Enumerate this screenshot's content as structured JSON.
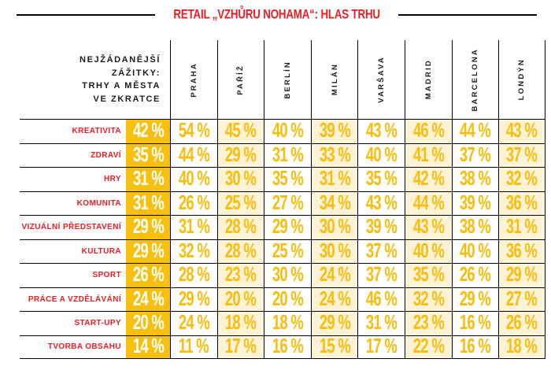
{
  "title": "RETAIL „VZHŮRU NOHAMA“: HLAS TRHU",
  "header": {
    "corner_lines": [
      "NEJŽÁDANĚJŠÍ",
      "ZÁŽITKY:",
      "TRHY A MĚSTA",
      "VE ZKRATCE"
    ]
  },
  "unit_suffix": " %",
  "colors": {
    "red": "#ED1C24",
    "gold_bg": "#F7C00E",
    "gold_text": "#FABD0C",
    "cream_bg": "#FCF3D7",
    "dark_text": "#1D1D1B",
    "line": "#000000"
  },
  "chart_data": {
    "type": "table",
    "title": "RETAIL „VZHŮRU NOHAMA“: HLAS TRHU",
    "corner_label": "NEJŽÁDANĚJŠÍ ZÁŽITKY: TRHY A MĚSTA VE ZKRATCE",
    "unit": "%",
    "columns": [
      "PRAHA",
      "PAŘÍŽ",
      "BERLÍN",
      "MILÁN",
      "VARŠAVA",
      "MADRID",
      "BARCELONA",
      "LONDÝN"
    ],
    "rows": [
      {
        "label": "KREATIVITA",
        "overall": 42,
        "values": [
          54,
          45,
          40,
          39,
          43,
          46,
          44,
          43
        ]
      },
      {
        "label": "ZDRAVÍ",
        "overall": 35,
        "values": [
          44,
          29,
          31,
          33,
          40,
          41,
          37,
          37
        ]
      },
      {
        "label": "HRY",
        "overall": 31,
        "values": [
          40,
          30,
          35,
          31,
          35,
          42,
          38,
          32
        ]
      },
      {
        "label": "KOMUNITA",
        "overall": 31,
        "values": [
          26,
          25,
          27,
          34,
          43,
          44,
          39,
          36
        ]
      },
      {
        "label": "VIZUÁLNÍ PŘEDSTAVENÍ",
        "overall": 29,
        "values": [
          31,
          28,
          29,
          30,
          39,
          43,
          38,
          31
        ]
      },
      {
        "label": "KULTURA",
        "overall": 29,
        "values": [
          32,
          28,
          25,
          30,
          37,
          40,
          40,
          36
        ]
      },
      {
        "label": "SPORT",
        "overall": 26,
        "values": [
          28,
          23,
          30,
          24,
          37,
          35,
          26,
          29
        ]
      },
      {
        "label": "PRÁCE A VZDĚLÁVÁNÍ",
        "overall": 24,
        "values": [
          29,
          20,
          20,
          24,
          46,
          32,
          29,
          27
        ]
      },
      {
        "label": "START-UPY",
        "overall": 20,
        "values": [
          24,
          18,
          18,
          29,
          31,
          23,
          16,
          26
        ]
      },
      {
        "label": "TVORBA OBSAHU",
        "overall": 14,
        "values": [
          11,
          17,
          16,
          15,
          17,
          22,
          16,
          18
        ]
      }
    ]
  }
}
